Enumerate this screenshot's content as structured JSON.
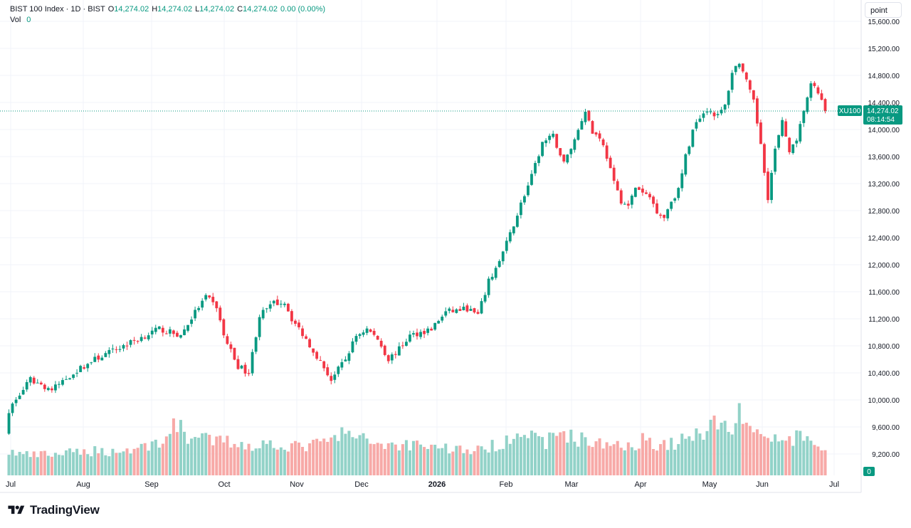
{
  "legend": {
    "symbol": "BIST 100 Index · 1D · BIST",
    "o_label": "O",
    "o_value": "14,274.02",
    "h_label": "H",
    "h_value": "14,274.02",
    "l_label": "L",
    "l_value": "14,274.02",
    "c_label": "C",
    "c_value": "14,274.02",
    "change": "0.00 (0.00%)",
    "vol_label": "Vol",
    "vol_value": "0"
  },
  "toolbar": {
    "point_label": "point"
  },
  "brand": {
    "name": "TradingView",
    "logo": "tradingview-logo-icon"
  },
  "price_tag": {
    "symbol": "XU100",
    "price": "14,274.02",
    "countdown": "08:14:54"
  },
  "volume_tag": "0",
  "colors": {
    "up": "#089981",
    "down": "#f23645",
    "up_vol": "#92d2c8",
    "down_vol": "#f7a9a7",
    "last_line": "#089981",
    "grid": "#f0f3fa"
  },
  "chart_data": {
    "type": "candlestick",
    "y_ticks": [
      "9,200.00",
      "9,600.00",
      "10,000.00",
      "10,400.00",
      "10,800.00",
      "11,200.00",
      "11,600.00",
      "12,000.00",
      "12,400.00",
      "12,800.00",
      "13,200.00",
      "13,600.00",
      "14,000.00",
      "14,400.00",
      "14,800.00",
      "15,200.00",
      "15,600.00"
    ],
    "x_ticks": [
      "Jul",
      "Aug",
      "Sep",
      "Oct",
      "Nov",
      "Dec",
      "2026",
      "Feb",
      "Mar",
      "Apr",
      "May",
      "Jun",
      "Jul"
    ],
    "ylim": [
      8900,
      15700
    ],
    "last_price": 14274.02,
    "grid": true,
    "close_path": [
      [
        0,
        9850
      ],
      [
        6,
        10300
      ],
      [
        12,
        10150
      ],
      [
        18,
        10400
      ],
      [
        24,
        10600
      ],
      [
        30,
        10750
      ],
      [
        36,
        10900
      ],
      [
        42,
        11050
      ],
      [
        48,
        10950
      ],
      [
        52,
        11300
      ],
      [
        55,
        11520
      ],
      [
        58,
        11380
      ],
      [
        60,
        10950
      ],
      [
        64,
        10500
      ],
      [
        67,
        10400
      ],
      [
        70,
        11250
      ],
      [
        74,
        11430
      ],
      [
        77,
        11450
      ],
      [
        79,
        11200
      ],
      [
        83,
        10900
      ],
      [
        86,
        10650
      ],
      [
        90,
        10300
      ],
      [
        94,
        10600
      ],
      [
        97,
        10950
      ],
      [
        100,
        11050
      ],
      [
        103,
        10900
      ],
      [
        106,
        10600
      ],
      [
        109,
        10750
      ],
      [
        112,
        10950
      ],
      [
        118,
        11050
      ],
      [
        122,
        11300
      ],
      [
        128,
        11350
      ],
      [
        131,
        11250
      ],
      [
        134,
        11750
      ],
      [
        137,
        12050
      ],
      [
        140,
        12450
      ],
      [
        143,
        12900
      ],
      [
        146,
        13300
      ],
      [
        149,
        13800
      ],
      [
        152,
        13900
      ],
      [
        155,
        13500
      ],
      [
        158,
        13850
      ],
      [
        161,
        14300
      ],
      [
        163,
        13950
      ],
      [
        165,
        13900
      ],
      [
        167,
        13600
      ],
      [
        169,
        13200
      ],
      [
        171,
        12950
      ],
      [
        173,
        12850
      ],
      [
        175,
        13150
      ],
      [
        177,
        13050
      ],
      [
        179,
        13000
      ],
      [
        181,
        12800
      ],
      [
        183,
        12700
      ],
      [
        185,
        12950
      ],
      [
        187,
        13100
      ],
      [
        189,
        13600
      ],
      [
        192,
        14150
      ],
      [
        195,
        14300
      ],
      [
        198,
        14200
      ],
      [
        200,
        14350
      ],
      [
        202,
        14850
      ],
      [
        204,
        15000
      ],
      [
        206,
        14700
      ],
      [
        208,
        14400
      ],
      [
        210,
        13800
      ],
      [
        212,
        13000
      ],
      [
        214,
        13700
      ],
      [
        216,
        14100
      ],
      [
        218,
        13700
      ],
      [
        220,
        13800
      ],
      [
        222,
        14300
      ],
      [
        224,
        14650
      ],
      [
        226,
        14550
      ],
      [
        228,
        14274
      ]
    ],
    "volume_path": [
      [
        0,
        0.19
      ],
      [
        6,
        0.16
      ],
      [
        12,
        0.17
      ],
      [
        18,
        0.18
      ],
      [
        24,
        0.2
      ],
      [
        30,
        0.19
      ],
      [
        36,
        0.22
      ],
      [
        42,
        0.27
      ],
      [
        44,
        0.32
      ],
      [
        46,
        0.38
      ],
      [
        48,
        0.42
      ],
      [
        50,
        0.31
      ],
      [
        56,
        0.28
      ],
      [
        62,
        0.27
      ],
      [
        68,
        0.24
      ],
      [
        74,
        0.26
      ],
      [
        80,
        0.23
      ],
      [
        86,
        0.25
      ],
      [
        92,
        0.3
      ],
      [
        94,
        0.38
      ],
      [
        96,
        0.3
      ],
      [
        102,
        0.27
      ],
      [
        108,
        0.24
      ],
      [
        114,
        0.26
      ],
      [
        120,
        0.23
      ],
      [
        126,
        0.21
      ],
      [
        132,
        0.2
      ],
      [
        138,
        0.27
      ],
      [
        142,
        0.38
      ],
      [
        146,
        0.3
      ],
      [
        150,
        0.27
      ],
      [
        154,
        0.36
      ],
      [
        158,
        0.3
      ],
      [
        162,
        0.28
      ],
      [
        166,
        0.24
      ],
      [
        170,
        0.27
      ],
      [
        174,
        0.24
      ],
      [
        178,
        0.3
      ],
      [
        182,
        0.24
      ],
      [
        186,
        0.26
      ],
      [
        190,
        0.3
      ],
      [
        194,
        0.36
      ],
      [
        196,
        0.5
      ],
      [
        198,
        0.4
      ],
      [
        202,
        0.4
      ],
      [
        204,
        0.48
      ],
      [
        206,
        0.47
      ],
      [
        208,
        0.36
      ],
      [
        212,
        0.3
      ],
      [
        216,
        0.28
      ],
      [
        220,
        0.3
      ],
      [
        224,
        0.28
      ],
      [
        228,
        0.21
      ]
    ]
  }
}
